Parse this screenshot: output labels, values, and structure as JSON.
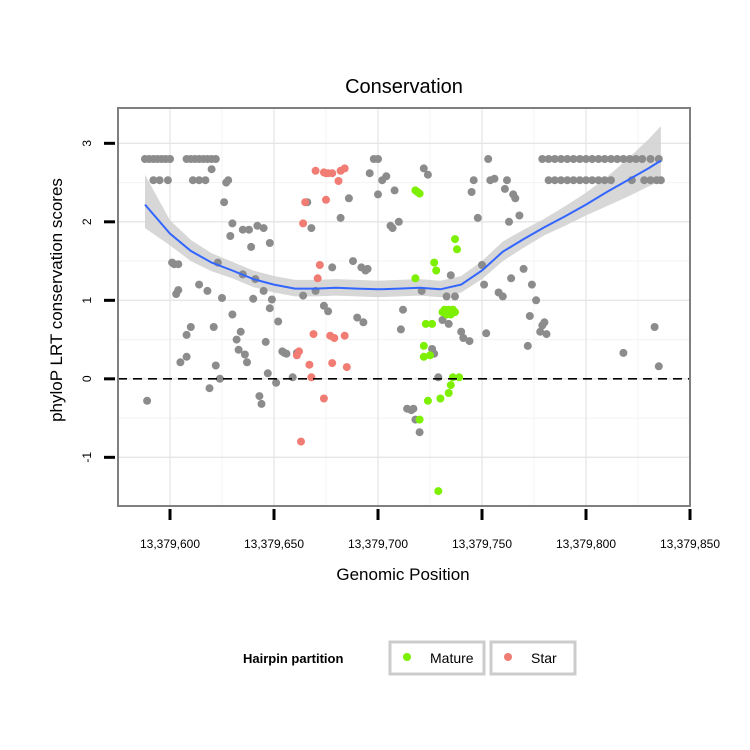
{
  "chart_data": {
    "type": "scatter",
    "title": "Conservation",
    "xlabel": "Genomic Position",
    "ylabel": "phyloP LRT conservation scores",
    "xlim": [
      13379575,
      13379850
    ],
    "ylim": [
      -1.62,
      3.45
    ],
    "x_ticks": [
      13379600,
      13379650,
      13379700,
      13379750,
      13379800,
      13379850
    ],
    "x_tick_labels": [
      "13,379,600",
      "13,379,650",
      "13,379,700",
      "13,379,750",
      "13,379,800",
      "13,379,850"
    ],
    "y_ticks": [
      -1,
      0,
      1,
      2,
      3
    ],
    "y_tick_labels": [
      "-1",
      "0",
      "1",
      "2",
      "3"
    ],
    "grid": true,
    "reference_line": {
      "y": 0,
      "style": "dashed"
    },
    "legend": {
      "title": "Hairpin partition",
      "position": "bottom",
      "entries": [
        {
          "label": "Mature",
          "color": "#7cf000"
        },
        {
          "label": "Star",
          "color": "#f07c74"
        }
      ]
    },
    "colors": {
      "other": "#8c8c8c",
      "mature": "#7cf000",
      "star": "#f07c74",
      "smooth": "#3366ff",
      "ribbon": "#d0d0d0"
    },
    "series": [
      {
        "name": "",
        "color_key": "other",
        "points": [
          [
            13379588,
            2.8
          ],
          [
            13379590,
            2.8
          ],
          [
            13379592,
            2.8
          ],
          [
            13379594,
            2.8
          ],
          [
            13379596,
            2.8
          ],
          [
            13379598,
            2.8
          ],
          [
            13379600,
            2.8
          ],
          [
            13379592,
            2.53
          ],
          [
            13379595,
            2.53
          ],
          [
            13379599,
            2.53
          ],
          [
            13379589,
            -0.28
          ],
          [
            13379601,
            1.48
          ],
          [
            13379602,
            1.46
          ],
          [
            13379604,
            1.46
          ],
          [
            13379603,
            1.08
          ],
          [
            13379604,
            1.13
          ],
          [
            13379605,
            0.21
          ],
          [
            13379608,
            0.28
          ],
          [
            13379608,
            0.56
          ],
          [
            13379610,
            0.66
          ],
          [
            13379608,
            2.8
          ],
          [
            13379610,
            2.8
          ],
          [
            13379612,
            2.8
          ],
          [
            13379614,
            2.8
          ],
          [
            13379616,
            2.8
          ],
          [
            13379618,
            2.8
          ],
          [
            13379620,
            2.8
          ],
          [
            13379622,
            2.8
          ],
          [
            13379611,
            2.53
          ],
          [
            13379614,
            2.53
          ],
          [
            13379617,
            2.53
          ],
          [
            13379620,
            2.67
          ],
          [
            13379614,
            1.2
          ],
          [
            13379618,
            1.12
          ],
          [
            13379619,
            -0.12
          ],
          [
            13379621,
            0.66
          ],
          [
            13379622,
            0.17
          ],
          [
            13379623,
            1.48
          ],
          [
            13379625,
            1.03
          ],
          [
            13379624,
            0.0
          ],
          [
            13379626,
            2.25
          ],
          [
            13379627,
            2.5
          ],
          [
            13379628,
            2.53
          ],
          [
            13379629,
            1.82
          ],
          [
            13379630,
            0.82
          ],
          [
            13379630,
            1.98
          ],
          [
            13379632,
            0.5
          ],
          [
            13379633,
            0.37
          ],
          [
            13379634,
            0.6
          ],
          [
            13379635,
            1.33
          ],
          [
            13379635,
            1.9
          ],
          [
            13379636,
            0.31
          ],
          [
            13379637,
            0.21
          ],
          [
            13379638,
            1.9
          ],
          [
            13379639,
            1.68
          ],
          [
            13379640,
            1.02
          ],
          [
            13379641,
            1.27
          ],
          [
            13379642,
            1.95
          ],
          [
            13379643,
            -0.22
          ],
          [
            13379644,
            -0.32
          ],
          [
            13379645,
            1.12
          ],
          [
            13379645,
            1.92
          ],
          [
            13379646,
            0.47
          ],
          [
            13379647,
            0.07
          ],
          [
            13379648,
            0.9
          ],
          [
            13379648,
            1.73
          ],
          [
            13379649,
            1.01
          ],
          [
            13379651,
            -0.05
          ],
          [
            13379652,
            0.73
          ],
          [
            13379654,
            0.35
          ],
          [
            13379655,
            0.33
          ],
          [
            13379656,
            0.32
          ],
          [
            13379659,
            0.02
          ],
          [
            13379661,
            0.33
          ],
          [
            13379664,
            1.06
          ],
          [
            13379666,
            2.25
          ],
          [
            13379668,
            1.92
          ],
          [
            13379670,
            1.12
          ],
          [
            13379674,
            0.93
          ],
          [
            13379676,
            0.86
          ],
          [
            13379678,
            1.42
          ],
          [
            13379682,
            2.05
          ],
          [
            13379686,
            2.3
          ],
          [
            13379688,
            1.5
          ],
          [
            13379690,
            0.78
          ],
          [
            13379692,
            1.42
          ],
          [
            13379693,
            0.72
          ],
          [
            13379694,
            1.38
          ],
          [
            13379695,
            1.4
          ],
          [
            13379696,
            2.62
          ],
          [
            13379700,
            2.35
          ],
          [
            13379698,
            2.8
          ],
          [
            13379700,
            2.8
          ],
          [
            13379702,
            2.53
          ],
          [
            13379704,
            2.58
          ],
          [
            13379706,
            1.95
          ],
          [
            13379707,
            1.92
          ],
          [
            13379708,
            2.4
          ],
          [
            13379710,
            2.0
          ],
          [
            13379711,
            0.63
          ],
          [
            13379712,
            0.88
          ],
          [
            13379714,
            -0.38
          ],
          [
            13379716,
            -0.4
          ],
          [
            13379717,
            -0.38
          ],
          [
            13379718,
            -0.52
          ],
          [
            13379720,
            -0.68
          ],
          [
            13379721,
            1.12
          ],
          [
            13379722,
            2.68
          ],
          [
            13379724,
            2.6
          ],
          [
            13379726,
            0.38
          ],
          [
            13379727,
            0.32
          ],
          [
            13379729,
            0.02
          ],
          [
            13379731,
            0.75
          ],
          [
            13379733,
            1.05
          ],
          [
            13379734,
            0.7
          ],
          [
            13379735,
            1.32
          ],
          [
            13379737,
            1.05
          ],
          [
            13379740,
            0.6
          ],
          [
            13379741,
            0.52
          ],
          [
            13379744,
            0.48
          ],
          [
            13379745,
            2.38
          ],
          [
            13379746,
            2.53
          ],
          [
            13379748,
            2.05
          ],
          [
            13379750,
            1.45
          ],
          [
            13379751,
            1.2
          ],
          [
            13379752,
            0.58
          ],
          [
            13379753,
            2.8
          ],
          [
            13379754,
            2.53
          ],
          [
            13379756,
            2.55
          ],
          [
            13379758,
            1.1
          ],
          [
            13379760,
            1.05
          ],
          [
            13379761,
            2.42
          ],
          [
            13379762,
            2.53
          ],
          [
            13379763,
            2.0
          ],
          [
            13379764,
            1.28
          ],
          [
            13379765,
            2.35
          ],
          [
            13379766,
            2.3
          ],
          [
            13379768,
            2.08
          ],
          [
            13379770,
            1.4
          ],
          [
            13379772,
            0.42
          ],
          [
            13379773,
            0.8
          ],
          [
            13379774,
            1.2
          ],
          [
            13379776,
            1.0
          ],
          [
            13379778,
            0.6
          ],
          [
            13379779,
            0.68
          ],
          [
            13379780,
            0.72
          ],
          [
            13379781,
            0.57
          ],
          [
            13379782,
            2.53
          ],
          [
            13379785,
            2.53
          ],
          [
            13379788,
            2.53
          ],
          [
            13379791,
            2.53
          ],
          [
            13379794,
            2.53
          ],
          [
            13379797,
            2.53
          ],
          [
            13379800,
            2.53
          ],
          [
            13379803,
            2.53
          ],
          [
            13379806,
            2.53
          ],
          [
            13379809,
            2.53
          ],
          [
            13379812,
            2.53
          ],
          [
            13379779,
            2.8
          ],
          [
            13379782,
            2.8
          ],
          [
            13379785,
            2.8
          ],
          [
            13379788,
            2.8
          ],
          [
            13379791,
            2.8
          ],
          [
            13379794,
            2.8
          ],
          [
            13379797,
            2.8
          ],
          [
            13379800,
            2.8
          ],
          [
            13379803,
            2.8
          ],
          [
            13379806,
            2.8
          ],
          [
            13379809,
            2.8
          ],
          [
            13379812,
            2.8
          ],
          [
            13379815,
            2.8
          ],
          [
            13379818,
            2.8
          ],
          [
            13379821,
            2.8
          ],
          [
            13379824,
            2.8
          ],
          [
            13379827,
            2.8
          ],
          [
            13379818,
            0.33
          ],
          [
            13379822,
            2.53
          ],
          [
            13379828,
            2.53
          ],
          [
            13379831,
            2.53
          ],
          [
            13379834,
            2.53
          ],
          [
            13379836,
            2.53
          ],
          [
            13379831,
            2.8
          ],
          [
            13379835,
            2.8
          ],
          [
            13379833,
            0.66
          ],
          [
            13379835,
            0.16
          ]
        ]
      },
      {
        "name": "Mature",
        "color_key": "mature",
        "points": [
          [
            13379718,
            2.4
          ],
          [
            13379719,
            2.38
          ],
          [
            13379720,
            2.36
          ],
          [
            13379718,
            1.28
          ],
          [
            13379720,
            -0.52
          ],
          [
            13379722,
            0.42
          ],
          [
            13379722,
            0.28
          ],
          [
            13379723,
            0.7
          ],
          [
            13379724,
            -0.28
          ],
          [
            13379725,
            0.3
          ],
          [
            13379726,
            0.7
          ],
          [
            13379727,
            1.48
          ],
          [
            13379728,
            1.38
          ],
          [
            13379729,
            -1.43
          ],
          [
            13379730,
            -0.25
          ],
          [
            13379731,
            0.85
          ],
          [
            13379732,
            0.88
          ],
          [
            13379733,
            0.82
          ],
          [
            13379734,
            0.88
          ],
          [
            13379735,
            0.82
          ],
          [
            13379736,
            0.88
          ],
          [
            13379737,
            0.85
          ],
          [
            13379734,
            -0.18
          ],
          [
            13379735,
            -0.08
          ],
          [
            13379736,
            0.02
          ],
          [
            13379737,
            1.78
          ],
          [
            13379738,
            1.65
          ],
          [
            13379739,
            0.02
          ]
        ]
      },
      {
        "name": "Star",
        "color_key": "star",
        "points": [
          [
            13379662,
            0.35
          ],
          [
            13379661,
            0.3
          ],
          [
            13379663,
            -0.8
          ],
          [
            13379664,
            1.98
          ],
          [
            13379665,
            2.25
          ],
          [
            13379667,
            0.18
          ],
          [
            13379668,
            0.02
          ],
          [
            13379669,
            0.57
          ],
          [
            13379670,
            2.65
          ],
          [
            13379671,
            1.28
          ],
          [
            13379672,
            1.45
          ],
          [
            13379674,
            2.63
          ],
          [
            13379675,
            2.62
          ],
          [
            13379676,
            2.62
          ],
          [
            13379678,
            2.62
          ],
          [
            13379674,
            -0.25
          ],
          [
            13379675,
            2.28
          ],
          [
            13379677,
            0.55
          ],
          [
            13379678,
            0.2
          ],
          [
            13379679,
            0.52
          ],
          [
            13379681,
            2.52
          ],
          [
            13379682,
            2.65
          ],
          [
            13379684,
            2.68
          ],
          [
            13379684,
            0.55
          ],
          [
            13379685,
            0.15
          ]
        ]
      }
    ],
    "smooth": {
      "x": [
        13379588,
        13379600,
        13379610,
        13379620,
        13379630,
        13379640,
        13379650,
        13379660,
        13379670,
        13379680,
        13379690,
        13379700,
        13379710,
        13379720,
        13379730,
        13379740,
        13379750,
        13379760,
        13379770,
        13379780,
        13379790,
        13379800,
        13379810,
        13379820,
        13379830,
        13379836
      ],
      "y": [
        2.22,
        1.85,
        1.63,
        1.48,
        1.38,
        1.27,
        1.2,
        1.15,
        1.15,
        1.16,
        1.15,
        1.14,
        1.15,
        1.16,
        1.14,
        1.2,
        1.38,
        1.62,
        1.78,
        1.93,
        2.07,
        2.22,
        2.38,
        2.53,
        2.68,
        2.78
      ],
      "lower": [
        1.92,
        1.7,
        1.5,
        1.37,
        1.28,
        1.17,
        1.1,
        1.05,
        1.05,
        1.06,
        1.05,
        1.04,
        1.05,
        1.06,
        1.04,
        1.1,
        1.27,
        1.5,
        1.67,
        1.83,
        1.95,
        2.08,
        2.2,
        2.32,
        2.45,
        2.52
      ],
      "upper": [
        2.6,
        2.02,
        1.77,
        1.6,
        1.49,
        1.38,
        1.31,
        1.26,
        1.26,
        1.27,
        1.26,
        1.25,
        1.26,
        1.27,
        1.25,
        1.31,
        1.5,
        1.75,
        1.9,
        2.04,
        2.2,
        2.37,
        2.57,
        2.8,
        3.05,
        3.22
      ]
    }
  }
}
